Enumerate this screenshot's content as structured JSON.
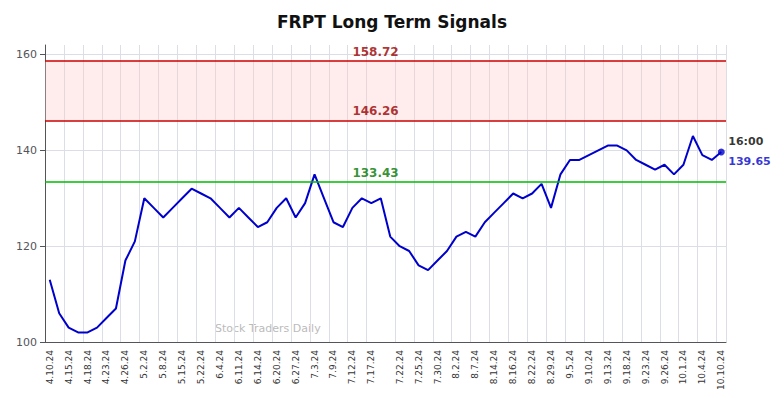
{
  "chart_data": {
    "type": "line",
    "title": "FRPT Long Term Signals",
    "categories": [
      "4.10.24",
      null,
      "4.15.24",
      null,
      "4.18.24",
      null,
      "4.23.24",
      null,
      "4.26.24",
      null,
      "5.2.24",
      null,
      "5.8.24",
      null,
      "5.15.24",
      null,
      "5.22.24",
      null,
      "6.4.24",
      null,
      "6.11.24",
      null,
      "6.14.24",
      null,
      "6.20.24",
      null,
      "6.27.24",
      null,
      "7.3.24",
      null,
      "7.9.24",
      null,
      "7.12.24",
      null,
      "7.17.24",
      null,
      null,
      "7.22.24",
      null,
      "7.25.24",
      null,
      "7.30.24",
      null,
      "8.2.24",
      null,
      "8.7.24",
      null,
      "8.14.24",
      null,
      "8.16.24",
      null,
      "8.22.24",
      null,
      "8.29.24",
      null,
      "9.5.24",
      null,
      "9.10.24",
      null,
      "9.13.24",
      null,
      "9.18.24",
      null,
      "9.23.24",
      null,
      "9.26.24",
      null,
      "10.1.24",
      null,
      "10.4.24",
      null,
      "10.10.24"
    ],
    "values": [
      113,
      106,
      103,
      102,
      102,
      103,
      105,
      107,
      117,
      121,
      130,
      128,
      126,
      128,
      130,
      132,
      131,
      130,
      128,
      126,
      128,
      126,
      124,
      125,
      128,
      130,
      126,
      129,
      135,
      130,
      125,
      124,
      128,
      130,
      129,
      130,
      122,
      120,
      119,
      116,
      115,
      117,
      119,
      122,
      123,
      122,
      125,
      127,
      129,
      131,
      130,
      131,
      133,
      128,
      135,
      138,
      138,
      139,
      140,
      141,
      141,
      140,
      138,
      137,
      136,
      137,
      135,
      137,
      143,
      139,
      138,
      139.65
    ],
    "color": "#0000cc",
    "ylim": [
      100,
      162
    ],
    "yticks": [
      100,
      120,
      140,
      160
    ],
    "grid": true,
    "hlines": [
      {
        "value": 158.72,
        "color": "#cc0000"
      },
      {
        "value": 146.26,
        "color": "#cc0000"
      },
      {
        "value": 133.43,
        "color": "#00bb00"
      }
    ],
    "band": {
      "from": 146.26,
      "to": 158.72,
      "color": "#ffcccc"
    },
    "annotations": [
      {
        "text": "158.72",
        "y": 158.72,
        "color": "#990000"
      },
      {
        "text": "146.26",
        "y": 146.26,
        "color": "#990000"
      },
      {
        "text": "133.43",
        "y": 133.43,
        "color": "#007700"
      }
    ],
    "last_point": {
      "marker_color": "#0000cc",
      "time": "16:00",
      "time_color": "#000000",
      "price_label": "139.65",
      "price_color": "#0000cc"
    },
    "watermark": {
      "text": "Stock Traders Daily",
      "color": "#bbbbbb"
    }
  }
}
